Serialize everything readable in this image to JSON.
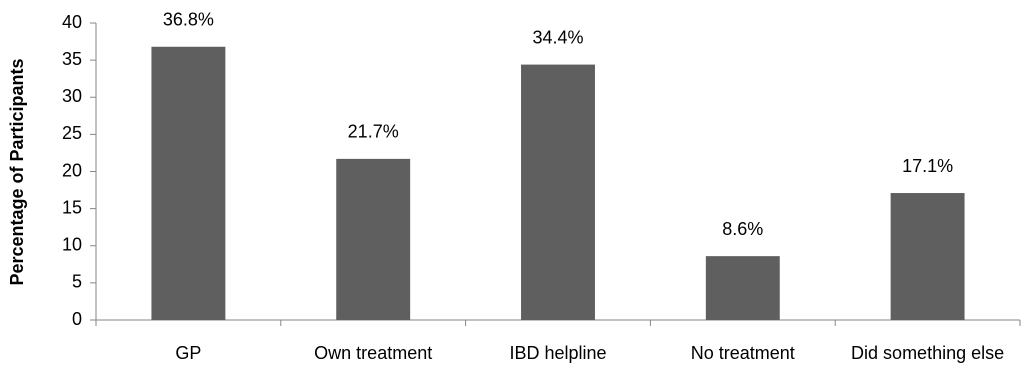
{
  "chart_data": {
    "type": "bar",
    "y_label": "Percentage of Participants",
    "categories": [
      "GP",
      "Own treatment",
      "IBD helpline",
      "No treatment",
      "Did something else"
    ],
    "values": [
      36.8,
      21.7,
      34.4,
      8.6,
      17.1
    ],
    "value_labels": [
      "36.8%",
      "21.7%",
      "34.4%",
      "8.6%",
      "17.1%"
    ],
    "color": "#5f5f5f",
    "ylim": [
      0,
      40
    ],
    "yticks": [
      0,
      5,
      10,
      15,
      20,
      25,
      30,
      35,
      40
    ],
    "grid": false
  }
}
